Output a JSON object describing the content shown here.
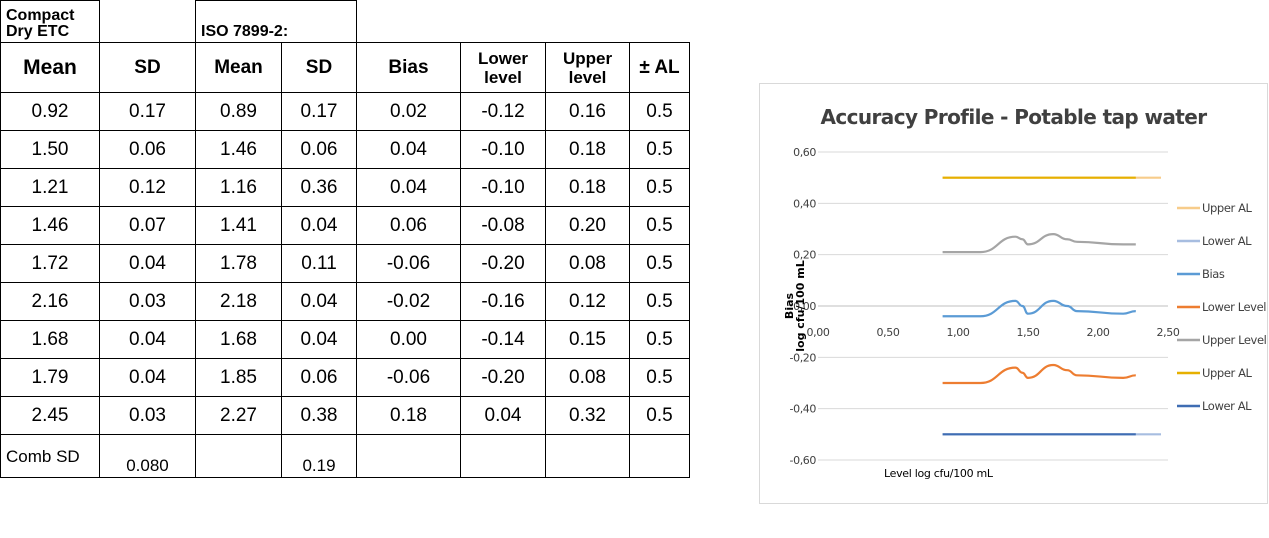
{
  "table": {
    "group_headers": [
      "Compact Dry ETC",
      "ISO 7899-2:"
    ],
    "columns": [
      "Mean",
      "SD",
      "Mean",
      "SD",
      "Bias",
      "Lower level",
      "Upper level",
      "± AL"
    ],
    "rows": [
      [
        "0.92",
        "0.17",
        "0.89",
        "0.17",
        "0.02",
        "-0.12",
        "0.16",
        "0.5"
      ],
      [
        "1.50",
        "0.06",
        "1.46",
        "0.06",
        "0.04",
        "-0.10",
        "0.18",
        "0.5"
      ],
      [
        "1.21",
        "0.12",
        "1.16",
        "0.36",
        "0.04",
        "-0.10",
        "0.18",
        "0.5"
      ],
      [
        "1.46",
        "0.07",
        "1.41",
        "0.04",
        "0.06",
        "-0.08",
        "0.20",
        "0.5"
      ],
      [
        "1.72",
        "0.04",
        "1.78",
        "0.11",
        "-0.06",
        "-0.20",
        "0.08",
        "0.5"
      ],
      [
        "2.16",
        "0.03",
        "2.18",
        "0.04",
        "-0.02",
        "-0.16",
        "0.12",
        "0.5"
      ],
      [
        "1.68",
        "0.04",
        "1.68",
        "0.04",
        "0.00",
        "-0.14",
        "0.15",
        "0.5"
      ],
      [
        "1.79",
        "0.04",
        "1.85",
        "0.06",
        "-0.06",
        "-0.20",
        "0.08",
        "0.5"
      ],
      [
        "2.45",
        "0.03",
        "2.27",
        "0.38",
        "0.18",
        "0.04",
        "0.32",
        "0.5"
      ]
    ],
    "comb_row": [
      "Comb SD",
      "0.080",
      "",
      "0.19",
      "",
      "",
      "",
      ""
    ]
  },
  "chart_data": {
    "type": "line",
    "title": "Accuracy Profile - Potable tap water",
    "xlabel": "Level log cfu/100 mL",
    "ylabel": "Bias log cfu/100 mL",
    "xlim": [
      0,
      2.5
    ],
    "ylim": [
      -0.6,
      0.6
    ],
    "x_ticks": [
      "0,00",
      "0,50",
      "1,00",
      "1,50",
      "2,00",
      "2,50"
    ],
    "y_ticks": [
      "0,60",
      "0,40",
      "0,20",
      "0,00",
      "-0,20",
      "-0,40",
      "-0,60"
    ],
    "grid": true,
    "legend_position": "right",
    "series": [
      {
        "name": "Upper AL",
        "color": "#f7cc8a",
        "x": [
          0.89,
          2.45
        ],
        "y": [
          0.5,
          0.5
        ]
      },
      {
        "name": "Lower AL",
        "color": "#a7bde0",
        "x": [
          0.89,
          2.45
        ],
        "y": [
          -0.5,
          -0.5
        ]
      },
      {
        "name": "Bias",
        "color": "#5b9bd5",
        "x": [
          0.89,
          1.16,
          1.41,
          1.46,
          1.5,
          1.68,
          1.78,
          1.85,
          2.18,
          2.27
        ],
        "y": [
          -0.04,
          -0.04,
          0.02,
          0.0,
          -0.03,
          0.02,
          0.0,
          -0.02,
          -0.03,
          -0.02
        ]
      },
      {
        "name": "Lower Level",
        "color": "#ed7d31",
        "x": [
          0.89,
          1.16,
          1.41,
          1.46,
          1.5,
          1.68,
          1.78,
          1.85,
          2.18,
          2.27
        ],
        "y": [
          -0.3,
          -0.3,
          -0.24,
          -0.26,
          -0.28,
          -0.23,
          -0.25,
          -0.27,
          -0.28,
          -0.27
        ]
      },
      {
        "name": "Upper Level",
        "color": "#a5a5a5",
        "x": [
          0.89,
          1.16,
          1.41,
          1.46,
          1.5,
          1.68,
          1.78,
          1.85,
          2.18,
          2.27
        ],
        "y": [
          0.21,
          0.21,
          0.27,
          0.26,
          0.24,
          0.28,
          0.26,
          0.25,
          0.24,
          0.24
        ]
      },
      {
        "name": "Upper AL",
        "color": "#e6b000",
        "x": [
          0.89,
          2.27
        ],
        "y": [
          0.5,
          0.5
        ]
      },
      {
        "name": "Lower AL",
        "color": "#3f6db3",
        "x": [
          0.89,
          2.27
        ],
        "y": [
          -0.5,
          -0.5
        ]
      }
    ]
  }
}
